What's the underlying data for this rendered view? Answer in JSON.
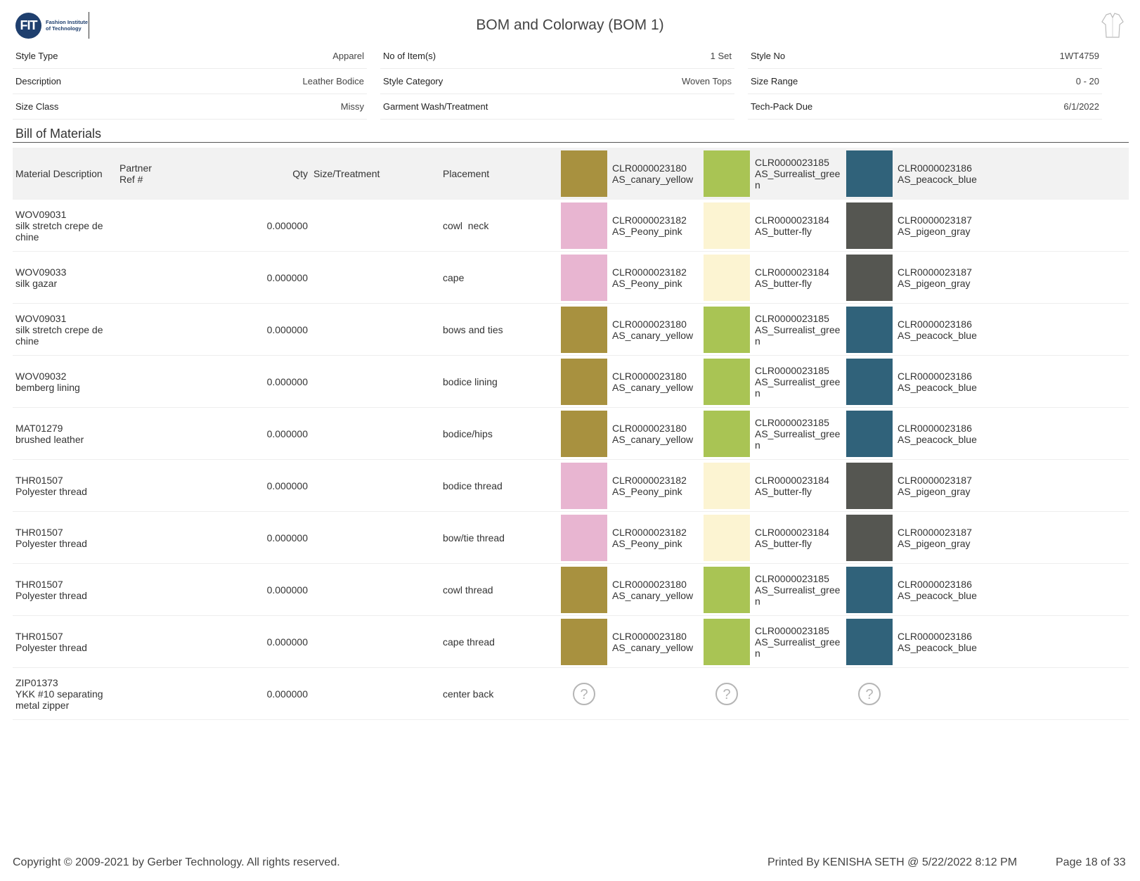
{
  "logo": {
    "mark": "FIT",
    "text": "Fashion Institute of Technology"
  },
  "title": "BOM and Colorway (BOM 1)",
  "header_fields": [
    [
      {
        "label": "Style Type",
        "value": "Apparel"
      },
      {
        "label": "Description",
        "value": "Leather Bodice"
      },
      {
        "label": "Size Class",
        "value": "Missy"
      }
    ],
    [
      {
        "label": "No of Item(s)",
        "value": "1 Set"
      },
      {
        "label": "Style Category",
        "value": "Woven Tops"
      },
      {
        "label": "Garment Wash/Treatment",
        "value": ""
      }
    ],
    [
      {
        "label": "Style No",
        "value": "1WT4759"
      },
      {
        "label": "Size Range",
        "value": "0 - 20"
      },
      {
        "label": "Tech-Pack Due",
        "value": "6/1/2022"
      }
    ]
  ],
  "section_title": "Bill of Materials",
  "columns": {
    "material": "Material Description",
    "partner_ref": "Partner Ref #",
    "qty": "Qty",
    "size_treatment": "Size/Treatment",
    "placement": "Placement"
  },
  "colorways": [
    {
      "code": "CLR0000023180",
      "name": "AS_canary_yellow",
      "color": "#a8913f"
    },
    {
      "code": "CLR0000023185",
      "name": "AS_Surrealist_green",
      "color": "#a9c454"
    },
    {
      "code": "CLR0000023186",
      "name": "AS_peacock_blue",
      "color": "#30627a"
    }
  ],
  "palette": {
    "canary_yellow": "#a8913f",
    "surrealist_green": "#a9c454",
    "peacock_blue": "#30627a",
    "peony_pink": "#e8b5d1",
    "butter_fly": "#fcf4d2",
    "pigeon_gray": "#555651"
  },
  "rows": [
    {
      "material": "WOV09031\nsilk stretch crepe de chine",
      "qty": "0.000000",
      "placement": "cowl  neck",
      "colors": [
        {
          "code": "CLR0000023182",
          "name": "AS_Peony_pink",
          "color": "#e8b5d1"
        },
        {
          "code": "CLR0000023184",
          "name": "AS_butter-fly",
          "color": "#fcf4d2"
        },
        {
          "code": "CLR0000023187",
          "name": "AS_pigeon_gray",
          "color": "#555651"
        }
      ]
    },
    {
      "material": "WOV09033\nsilk gazar",
      "qty": "0.000000",
      "placement": "cape",
      "colors": [
        {
          "code": "CLR0000023182",
          "name": "AS_Peony_pink",
          "color": "#e8b5d1"
        },
        {
          "code": "CLR0000023184",
          "name": "AS_butter-fly",
          "color": "#fcf4d2"
        },
        {
          "code": "CLR0000023187",
          "name": "AS_pigeon_gray",
          "color": "#555651"
        }
      ]
    },
    {
      "material": "WOV09031\nsilk stretch crepe de chine",
      "qty": "0.000000",
      "placement": "bows and ties",
      "colors": [
        {
          "code": "CLR0000023180",
          "name": "AS_canary_yellow",
          "color": "#a8913f"
        },
        {
          "code": "CLR0000023185",
          "name": "AS_Surrealist_green",
          "color": "#a9c454"
        },
        {
          "code": "CLR0000023186",
          "name": "AS_peacock_blue",
          "color": "#30627a"
        }
      ]
    },
    {
      "material": "WOV09032\nbemberg lining",
      "qty": "0.000000",
      "placement": "bodice lining",
      "colors": [
        {
          "code": "CLR0000023180",
          "name": "AS_canary_yellow",
          "color": "#a8913f"
        },
        {
          "code": "CLR0000023185",
          "name": "AS_Surrealist_green",
          "color": "#a9c454"
        },
        {
          "code": "CLR0000023186",
          "name": "AS_peacock_blue",
          "color": "#30627a"
        }
      ]
    },
    {
      "material": "MAT01279\nbrushed leather",
      "qty": "0.000000",
      "placement": "bodice/hips",
      "colors": [
        {
          "code": "CLR0000023180",
          "name": "AS_canary_yellow",
          "color": "#a8913f"
        },
        {
          "code": "CLR0000023185",
          "name": "AS_Surrealist_green",
          "color": "#a9c454"
        },
        {
          "code": "CLR0000023186",
          "name": "AS_peacock_blue",
          "color": "#30627a"
        }
      ]
    },
    {
      "material": "THR01507\nPolyester thread",
      "qty": "0.000000",
      "placement": "bodice thread",
      "colors": [
        {
          "code": "CLR0000023182",
          "name": "AS_Peony_pink",
          "color": "#e8b5d1"
        },
        {
          "code": "CLR0000023184",
          "name": "AS_butter-fly",
          "color": "#fcf4d2"
        },
        {
          "code": "CLR0000023187",
          "name": "AS_pigeon_gray",
          "color": "#555651"
        }
      ]
    },
    {
      "material": "THR01507\nPolyester thread",
      "qty": "0.000000",
      "placement": "bow/tie thread",
      "colors": [
        {
          "code": "CLR0000023182",
          "name": "AS_Peony_pink",
          "color": "#e8b5d1"
        },
        {
          "code": "CLR0000023184",
          "name": "AS_butter-fly",
          "color": "#fcf4d2"
        },
        {
          "code": "CLR0000023187",
          "name": "AS_pigeon_gray",
          "color": "#555651"
        }
      ]
    },
    {
      "material": "THR01507\nPolyester thread",
      "qty": "0.000000",
      "placement": "cowl thread",
      "colors": [
        {
          "code": "CLR0000023180",
          "name": "AS_canary_yellow",
          "color": "#a8913f"
        },
        {
          "code": "CLR0000023185",
          "name": "AS_Surrealist_green",
          "color": "#a9c454"
        },
        {
          "code": "CLR0000023186",
          "name": "AS_peacock_blue",
          "color": "#30627a"
        }
      ]
    },
    {
      "material": "THR01507\nPolyester thread",
      "qty": "0.000000",
      "placement": "cape thread",
      "colors": [
        {
          "code": "CLR0000023180",
          "name": "AS_canary_yellow",
          "color": "#a8913f"
        },
        {
          "code": "CLR0000023185",
          "name": "AS_Surrealist_green",
          "color": "#a9c454"
        },
        {
          "code": "CLR0000023186",
          "name": "AS_peacock_blue",
          "color": "#30627a"
        }
      ]
    },
    {
      "material": "ZIP01373\nYKK #10 separating metal zipper",
      "qty": "0.000000",
      "placement": "center back",
      "colors": [
        {
          "unknown": true
        },
        {
          "unknown": true
        },
        {
          "unknown": true
        }
      ]
    }
  ],
  "footer": {
    "copyright": "Copyright © 2009-2021 by Gerber Technology. All rights reserved.",
    "printed_by": "Printed By KENISHA SETH @ 5/22/2022 8:12 PM",
    "page": "Page 18 of 33"
  }
}
